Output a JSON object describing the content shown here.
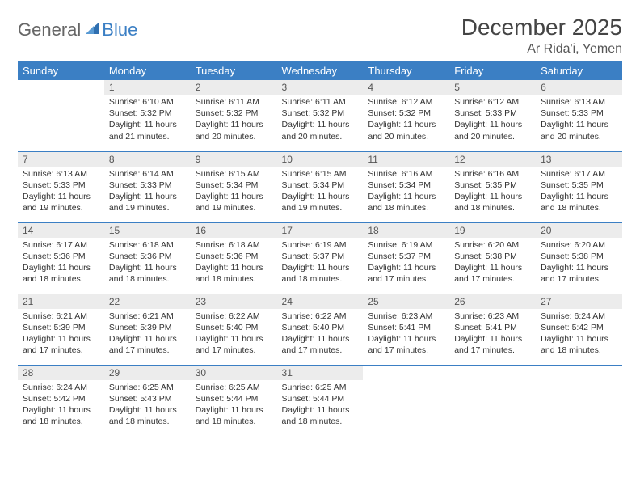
{
  "brand": {
    "part1": "General",
    "part2": "Blue"
  },
  "title": "December 2025",
  "location": "Ar Rida'i, Yemen",
  "colors": {
    "header_bg": "#3b7fc4",
    "header_fg": "#ffffff",
    "daynum_bg": "#ececec",
    "border": "#3b7fc4",
    "text": "#333333"
  },
  "daysOfWeek": [
    "Sunday",
    "Monday",
    "Tuesday",
    "Wednesday",
    "Thursday",
    "Friday",
    "Saturday"
  ],
  "weeks": [
    [
      null,
      {
        "n": "1",
        "sr": "Sunrise: 6:10 AM",
        "ss": "Sunset: 5:32 PM",
        "dl": "Daylight: 11 hours and 21 minutes."
      },
      {
        "n": "2",
        "sr": "Sunrise: 6:11 AM",
        "ss": "Sunset: 5:32 PM",
        "dl": "Daylight: 11 hours and 20 minutes."
      },
      {
        "n": "3",
        "sr": "Sunrise: 6:11 AM",
        "ss": "Sunset: 5:32 PM",
        "dl": "Daylight: 11 hours and 20 minutes."
      },
      {
        "n": "4",
        "sr": "Sunrise: 6:12 AM",
        "ss": "Sunset: 5:32 PM",
        "dl": "Daylight: 11 hours and 20 minutes."
      },
      {
        "n": "5",
        "sr": "Sunrise: 6:12 AM",
        "ss": "Sunset: 5:33 PM",
        "dl": "Daylight: 11 hours and 20 minutes."
      },
      {
        "n": "6",
        "sr": "Sunrise: 6:13 AM",
        "ss": "Sunset: 5:33 PM",
        "dl": "Daylight: 11 hours and 20 minutes."
      }
    ],
    [
      {
        "n": "7",
        "sr": "Sunrise: 6:13 AM",
        "ss": "Sunset: 5:33 PM",
        "dl": "Daylight: 11 hours and 19 minutes."
      },
      {
        "n": "8",
        "sr": "Sunrise: 6:14 AM",
        "ss": "Sunset: 5:33 PM",
        "dl": "Daylight: 11 hours and 19 minutes."
      },
      {
        "n": "9",
        "sr": "Sunrise: 6:15 AM",
        "ss": "Sunset: 5:34 PM",
        "dl": "Daylight: 11 hours and 19 minutes."
      },
      {
        "n": "10",
        "sr": "Sunrise: 6:15 AM",
        "ss": "Sunset: 5:34 PM",
        "dl": "Daylight: 11 hours and 19 minutes."
      },
      {
        "n": "11",
        "sr": "Sunrise: 6:16 AM",
        "ss": "Sunset: 5:34 PM",
        "dl": "Daylight: 11 hours and 18 minutes."
      },
      {
        "n": "12",
        "sr": "Sunrise: 6:16 AM",
        "ss": "Sunset: 5:35 PM",
        "dl": "Daylight: 11 hours and 18 minutes."
      },
      {
        "n": "13",
        "sr": "Sunrise: 6:17 AM",
        "ss": "Sunset: 5:35 PM",
        "dl": "Daylight: 11 hours and 18 minutes."
      }
    ],
    [
      {
        "n": "14",
        "sr": "Sunrise: 6:17 AM",
        "ss": "Sunset: 5:36 PM",
        "dl": "Daylight: 11 hours and 18 minutes."
      },
      {
        "n": "15",
        "sr": "Sunrise: 6:18 AM",
        "ss": "Sunset: 5:36 PM",
        "dl": "Daylight: 11 hours and 18 minutes."
      },
      {
        "n": "16",
        "sr": "Sunrise: 6:18 AM",
        "ss": "Sunset: 5:36 PM",
        "dl": "Daylight: 11 hours and 18 minutes."
      },
      {
        "n": "17",
        "sr": "Sunrise: 6:19 AM",
        "ss": "Sunset: 5:37 PM",
        "dl": "Daylight: 11 hours and 18 minutes."
      },
      {
        "n": "18",
        "sr": "Sunrise: 6:19 AM",
        "ss": "Sunset: 5:37 PM",
        "dl": "Daylight: 11 hours and 17 minutes."
      },
      {
        "n": "19",
        "sr": "Sunrise: 6:20 AM",
        "ss": "Sunset: 5:38 PM",
        "dl": "Daylight: 11 hours and 17 minutes."
      },
      {
        "n": "20",
        "sr": "Sunrise: 6:20 AM",
        "ss": "Sunset: 5:38 PM",
        "dl": "Daylight: 11 hours and 17 minutes."
      }
    ],
    [
      {
        "n": "21",
        "sr": "Sunrise: 6:21 AM",
        "ss": "Sunset: 5:39 PM",
        "dl": "Daylight: 11 hours and 17 minutes."
      },
      {
        "n": "22",
        "sr": "Sunrise: 6:21 AM",
        "ss": "Sunset: 5:39 PM",
        "dl": "Daylight: 11 hours and 17 minutes."
      },
      {
        "n": "23",
        "sr": "Sunrise: 6:22 AM",
        "ss": "Sunset: 5:40 PM",
        "dl": "Daylight: 11 hours and 17 minutes."
      },
      {
        "n": "24",
        "sr": "Sunrise: 6:22 AM",
        "ss": "Sunset: 5:40 PM",
        "dl": "Daylight: 11 hours and 17 minutes."
      },
      {
        "n": "25",
        "sr": "Sunrise: 6:23 AM",
        "ss": "Sunset: 5:41 PM",
        "dl": "Daylight: 11 hours and 17 minutes."
      },
      {
        "n": "26",
        "sr": "Sunrise: 6:23 AM",
        "ss": "Sunset: 5:41 PM",
        "dl": "Daylight: 11 hours and 17 minutes."
      },
      {
        "n": "27",
        "sr": "Sunrise: 6:24 AM",
        "ss": "Sunset: 5:42 PM",
        "dl": "Daylight: 11 hours and 18 minutes."
      }
    ],
    [
      {
        "n": "28",
        "sr": "Sunrise: 6:24 AM",
        "ss": "Sunset: 5:42 PM",
        "dl": "Daylight: 11 hours and 18 minutes."
      },
      {
        "n": "29",
        "sr": "Sunrise: 6:25 AM",
        "ss": "Sunset: 5:43 PM",
        "dl": "Daylight: 11 hours and 18 minutes."
      },
      {
        "n": "30",
        "sr": "Sunrise: 6:25 AM",
        "ss": "Sunset: 5:44 PM",
        "dl": "Daylight: 11 hours and 18 minutes."
      },
      {
        "n": "31",
        "sr": "Sunrise: 6:25 AM",
        "ss": "Sunset: 5:44 PM",
        "dl": "Daylight: 11 hours and 18 minutes."
      },
      null,
      null,
      null
    ]
  ]
}
